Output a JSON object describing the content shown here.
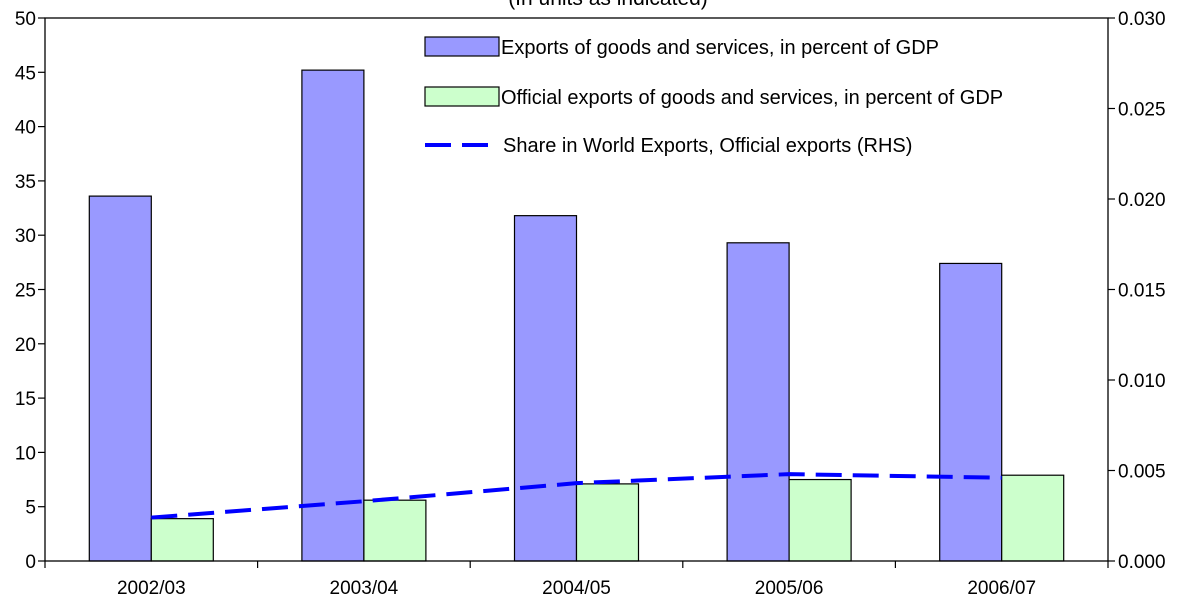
{
  "chart_data": {
    "type": "bar",
    "title": "(In units as indicated)",
    "categories": [
      "2002/03",
      "2003/04",
      "2004/05",
      "2005/06",
      "2006/07"
    ],
    "series": [
      {
        "name": "Exports of goods and services, in percent of GDP",
        "type": "bar",
        "axis": "left",
        "color": "#9999ff",
        "values": [
          33.6,
          45.2,
          31.8,
          29.3,
          27.4
        ]
      },
      {
        "name": "Official exports of goods and services, in percent of GDP",
        "type": "bar",
        "axis": "left",
        "color": "#ccffcc",
        "values": [
          3.9,
          5.6,
          7.1,
          7.5,
          7.9
        ]
      },
      {
        "name": "Share in World Exports, Official exports (RHS)",
        "type": "line",
        "style": "dashed",
        "axis": "right",
        "color": "#0000ff",
        "values": [
          0.0024,
          0.0033,
          0.0043,
          0.0048,
          0.0046
        ]
      }
    ],
    "ylim": [
      0,
      50
    ],
    "yticks": [
      "0",
      "5",
      "10",
      "15",
      "20",
      "25",
      "30",
      "35",
      "40",
      "45",
      "50"
    ],
    "y2lim": [
      0,
      0.03
    ],
    "y2ticks": [
      "0.000",
      "0.005",
      "0.010",
      "0.015",
      "0.020",
      "0.025",
      "0.030"
    ],
    "grid": false,
    "legend_position": "top-right inside"
  }
}
